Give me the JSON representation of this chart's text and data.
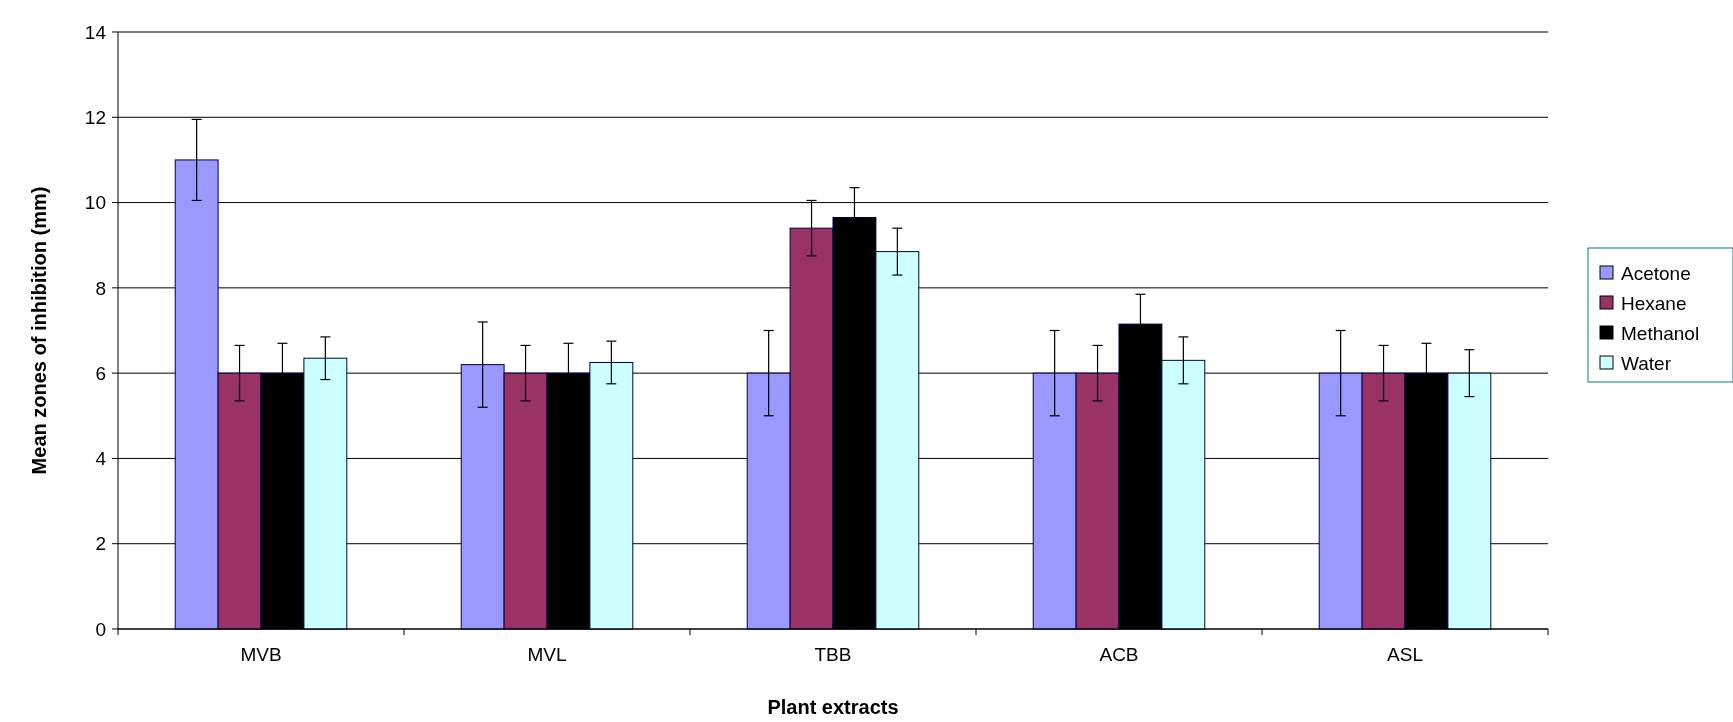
{
  "chart_data": {
    "type": "bar",
    "xlabel": "Plant extracts",
    "ylabel": "Mean zones of inhibition (mm)",
    "categories": [
      "MVB",
      "MVL",
      "TBB",
      "ACB",
      "ASL"
    ],
    "series": [
      {
        "name": "Acetone",
        "color": "#9999ff",
        "values": [
          11,
          6.2,
          6,
          6,
          6
        ],
        "errors": [
          0.95,
          1,
          1,
          1,
          1
        ]
      },
      {
        "name": "Hexane",
        "color": "#993366",
        "values": [
          6,
          6,
          9.4,
          6,
          6
        ],
        "errors": [
          0.65,
          0.65,
          0.65,
          0.65,
          0.65
        ]
      },
      {
        "name": "Methanol",
        "color": "#000000",
        "values": [
          6,
          6,
          9.65,
          7.15,
          6
        ],
        "errors": [
          0.7,
          0.7,
          0.7,
          0.7,
          0.7
        ]
      },
      {
        "name": "Water",
        "color": "#ccffff",
        "values": [
          6.35,
          6.25,
          8.85,
          6.3,
          6
        ],
        "errors": [
          0.5,
          0.5,
          0.55,
          0.55,
          0.55
        ]
      }
    ],
    "ylim": [
      0,
      14
    ],
    "yticks": [
      0,
      2,
      4,
      6,
      8,
      10,
      12,
      14
    ],
    "grid": "y",
    "legend": "right"
  }
}
